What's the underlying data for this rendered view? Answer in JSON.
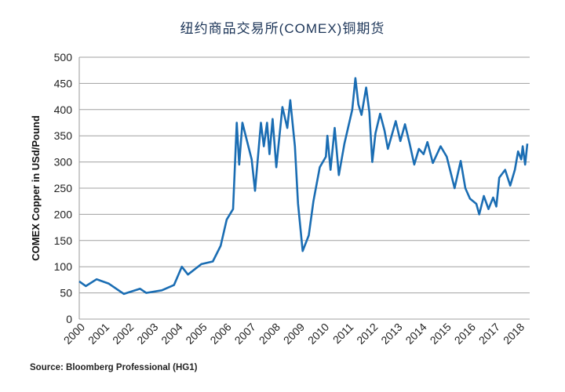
{
  "chart_data": {
    "type": "line",
    "title": "纽约商品交易所(COMEX)铜期货",
    "xlabel": "",
    "ylabel": "COMEX Copper in USd/Pound",
    "source": "Source: Bloomberg Professional (HG1)",
    "ylim": [
      0,
      500
    ],
    "xlim": [
      2000,
      2018.35
    ],
    "yticks": [
      0,
      50,
      100,
      150,
      200,
      250,
      300,
      350,
      400,
      450,
      500
    ],
    "xticks": [
      "2000",
      "2001",
      "2002",
      "2003",
      "2004",
      "2005",
      "2006",
      "2007",
      "2008",
      "2009",
      "2010",
      "2011",
      "2012",
      "2013",
      "2014",
      "2015",
      "2016",
      "2017",
      "2018"
    ],
    "grid": "horizontal",
    "line_color": "#1a6db3",
    "series": [
      {
        "x": [
          2000.0,
          2000.27,
          2000.71,
          2001.2,
          2001.83,
          2002.49,
          2002.74,
          2003.38,
          2003.88,
          2004.2,
          2004.45,
          2005.0,
          2005.47,
          2005.79,
          2006.04,
          2006.3,
          2006.45,
          2006.55,
          2006.68,
          2006.87,
          2007.06,
          2007.2,
          2007.44,
          2007.56,
          2007.69,
          2007.79,
          2007.92,
          2008.07,
          2008.32,
          2008.52,
          2008.64,
          2008.83,
          2008.96,
          2009.15,
          2009.4,
          2009.59,
          2009.85,
          2010.1,
          2010.16,
          2010.29,
          2010.46,
          2010.63,
          2010.86,
          2011.18,
          2011.31,
          2011.43,
          2011.56,
          2011.75,
          2011.88,
          2012.0,
          2012.13,
          2012.32,
          2012.5,
          2012.64,
          2012.76,
          2012.96,
          2013.15,
          2013.34,
          2013.53,
          2013.72,
          2013.91,
          2014.1,
          2014.26,
          2014.48,
          2014.8,
          2015.05,
          2015.37,
          2015.62,
          2015.81,
          2016.0,
          2016.26,
          2016.38,
          2016.57,
          2016.76,
          2016.95,
          2017.08,
          2017.2,
          2017.44,
          2017.65,
          2017.84,
          2017.97,
          2018.1,
          2018.16,
          2018.26,
          2018.35
        ],
        "y": [
          72,
          63,
          76,
          68,
          48,
          58,
          50,
          55,
          65,
          100,
          85,
          105,
          110,
          140,
          190,
          210,
          375,
          295,
          375,
          340,
          305,
          245,
          375,
          330,
          375,
          315,
          382,
          290,
          405,
          365,
          418,
          330,
          220,
          130,
          160,
          225,
          290,
          310,
          350,
          285,
          365,
          275,
          335,
          400,
          460,
          410,
          390,
          442,
          395,
          300,
          355,
          392,
          360,
          325,
          345,
          378,
          340,
          372,
          335,
          295,
          325,
          315,
          338,
          298,
          330,
          310,
          250,
          302,
          250,
          230,
          220,
          200,
          235,
          210,
          232,
          215,
          270,
          285,
          255,
          285,
          320,
          305,
          330,
          295,
          335
        ]
      }
    ]
  }
}
